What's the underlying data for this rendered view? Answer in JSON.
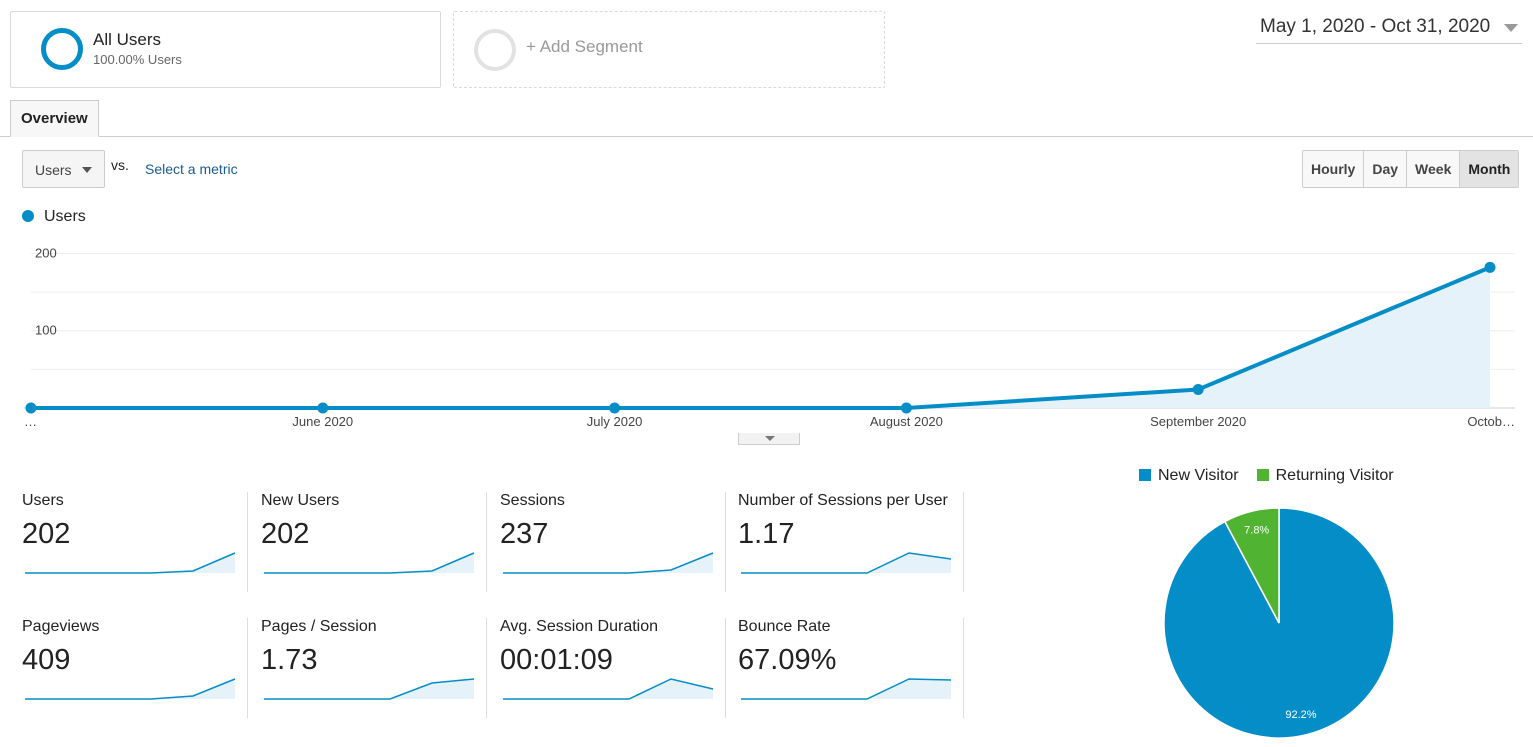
{
  "segments": {
    "all_users": {
      "title": "All Users",
      "subtitle": "100.00% Users"
    },
    "add_segment": {
      "label": "+ Add Segment"
    }
  },
  "date_range": "May 1, 2020 - Oct 31, 2020",
  "tabs": [
    {
      "label": "Overview",
      "active": true
    }
  ],
  "metric_selector": {
    "selected": "Users",
    "vs_label": "vs.",
    "select_metric": "Select a metric"
  },
  "granularity": [
    {
      "label": "Hourly",
      "active": false
    },
    {
      "label": "Day",
      "active": false
    },
    {
      "label": "Week",
      "active": false
    },
    {
      "label": "Month",
      "active": true
    }
  ],
  "colors": {
    "accent": "#058dc7",
    "returning": "#50b432",
    "area_fill": "#e6f2fa",
    "link": "#1a5a96"
  },
  "chart_data": [
    {
      "type": "line",
      "legend": [
        "Users"
      ],
      "x": [
        "…",
        "June 2020",
        "July 2020",
        "August 2020",
        "September 2020",
        "Octob…"
      ],
      "series": [
        {
          "name": "Users",
          "values": [
            0,
            0,
            0,
            0,
            24,
            182
          ]
        }
      ],
      "y_ticks": [
        "100",
        "200"
      ],
      "ylim": [
        0,
        200
      ],
      "grid": true,
      "area_fill": true,
      "legend_placement": "top-left"
    },
    {
      "type": "pie",
      "labels": [
        "New Visitor",
        "Returning Visitor"
      ],
      "values": [
        92.2,
        7.8
      ],
      "value_labels": [
        "92.2%",
        "7.8%"
      ],
      "colors": [
        "#058dc7",
        "#50b432"
      ],
      "legend_placement": "top"
    }
  ],
  "scorecards": [
    {
      "label": "Users",
      "value": "202",
      "spark": [
        0,
        0,
        0,
        0,
        2,
        20
      ]
    },
    {
      "label": "New Users",
      "value": "202",
      "spark": [
        0,
        0,
        0,
        0,
        2,
        20
      ]
    },
    {
      "label": "Sessions",
      "value": "237",
      "spark": [
        0,
        0,
        0,
        0,
        3,
        20
      ]
    },
    {
      "label": "Number of Sessions per User",
      "value": "1.17",
      "spark": [
        0,
        0,
        0,
        0,
        20,
        14
      ]
    },
    {
      "label": "Pageviews",
      "value": "409",
      "spark": [
        0,
        0,
        0,
        0,
        3,
        20
      ]
    },
    {
      "label": "Pages / Session",
      "value": "1.73",
      "spark": [
        0,
        0,
        0,
        0,
        16,
        20
      ]
    },
    {
      "label": "Avg. Session Duration",
      "value": "00:01:09",
      "spark": [
        0,
        0,
        0,
        0,
        20,
        10
      ]
    },
    {
      "label": "Bounce Rate",
      "value": "67.09%",
      "spark": [
        0,
        0,
        0,
        0,
        20,
        19
      ]
    }
  ]
}
